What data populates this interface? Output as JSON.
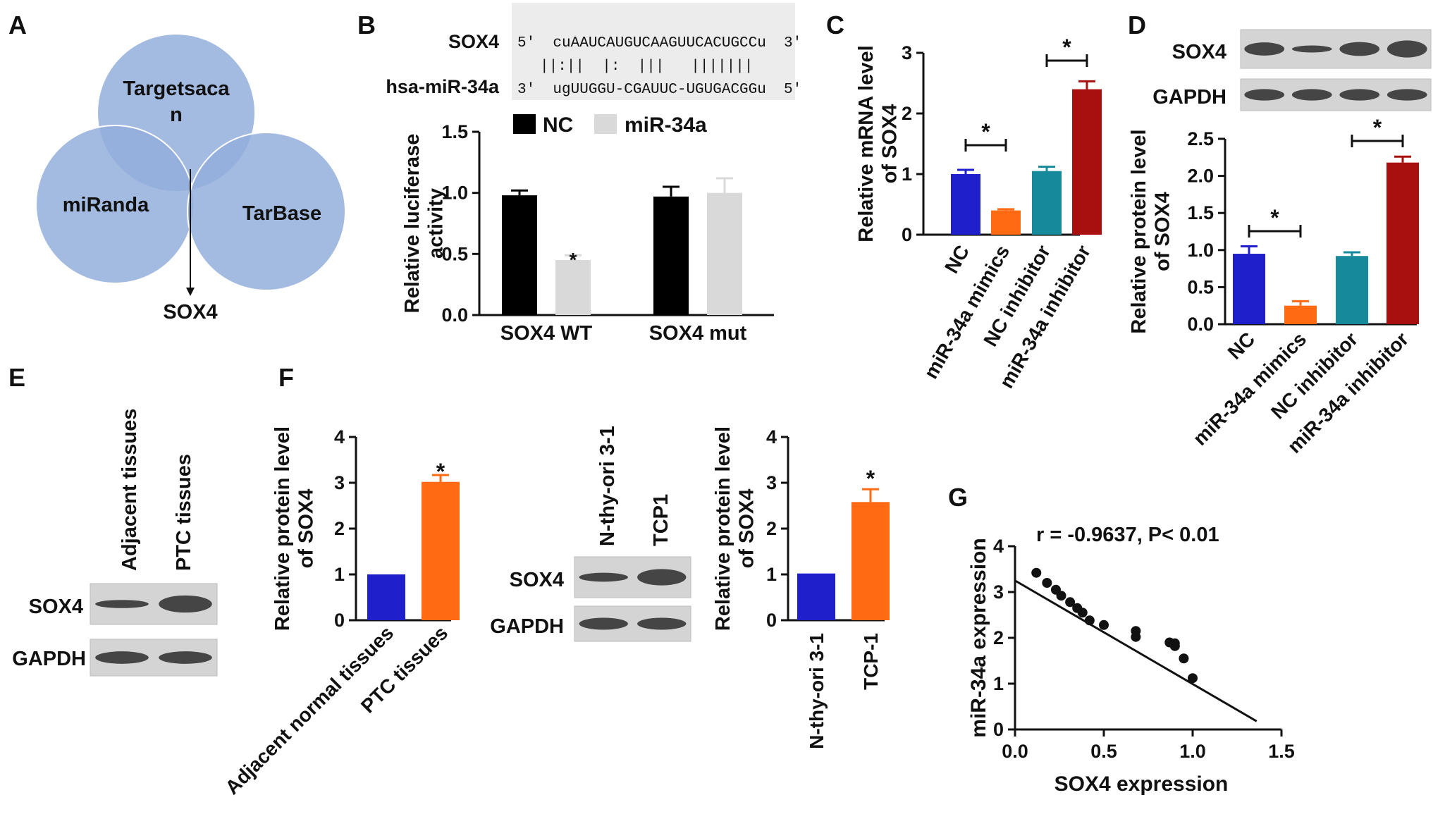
{
  "panels": {
    "A": {
      "letter": "A",
      "circles": [
        "Targetsacan",
        "miRanda",
        "TarBase"
      ],
      "circle_line1": "Targetsaca",
      "circle_line2": "n",
      "result": "SOX4",
      "color": "#93aedc"
    },
    "B": {
      "letter": "B",
      "seq_name_top": "SOX4",
      "seq_name_bottom": "hsa-miR-34a",
      "seq_top": "5'  cuAAUCAUGUCAAGUUCACUGCCu  3'",
      "seq_pairs": "||:||  |:  |||   |||||||",
      "seq_bottom": "3'  ugUUGGU-CGAUUC-UGUGACGGu  5'",
      "seq_top_color": "#2222cc",
      "seq_pair_color": "#cc2222",
      "seq_bottom_color": "#e07000",
      "chart_data": {
        "type": "bar",
        "categories": [
          "SOX4 WT",
          "SOX4 mut"
        ],
        "series": [
          {
            "name": "NC",
            "values": [
              0.98,
              0.97
            ],
            "errors": [
              0.04,
              0.08
            ],
            "color": "#000000"
          },
          {
            "name": "miR-34a",
            "values": [
              0.45,
              1.0
            ],
            "errors": [
              0.04,
              0.12
            ],
            "color": "#d9d9d9"
          }
        ],
        "ylabel_line1": "Relative luciferase",
        "ylabel_line2": "activity",
        "ylim": [
          0,
          1.5
        ],
        "yticks": [
          "0.0",
          "0.5",
          "1.0",
          "1.5"
        ],
        "legend": "top",
        "annotation": "*"
      }
    },
    "C": {
      "letter": "C",
      "chart_data": {
        "type": "bar",
        "categories": [
          "NC",
          "miR-34a mimics",
          "NC inhibitor",
          "miR-34a inhibitor"
        ],
        "values": [
          1.0,
          0.4,
          1.05,
          2.4
        ],
        "errors": [
          0.07,
          0.02,
          0.07,
          0.13
        ],
        "colors": [
          "#1f1fcc",
          "#ff6a13",
          "#168a9a",
          "#a81010"
        ],
        "ylabel_line1": "Relative mRNA level",
        "ylabel_line2": "of SOX4",
        "ylim": [
          0,
          3
        ],
        "yticks": [
          "0",
          "1",
          "2",
          "3"
        ],
        "annotation": "*"
      }
    },
    "D": {
      "letter": "D",
      "blot_labels": [
        "SOX4",
        "GAPDH"
      ],
      "chart_data": {
        "type": "bar",
        "categories": [
          "NC",
          "miR-34a mimics",
          "NC inhibitor",
          "miR-34a inhibitor"
        ],
        "values": [
          0.95,
          0.25,
          0.92,
          2.18
        ],
        "errors": [
          0.1,
          0.06,
          0.05,
          0.08
        ],
        "colors": [
          "#1f1fcc",
          "#ff6a13",
          "#168a9a",
          "#a81010"
        ],
        "ylabel_line1": "Relative protein level",
        "ylabel_line2": "of SOX4",
        "ylim": [
          0,
          2.5
        ],
        "yticks": [
          "0.0",
          "0.5",
          "1.0",
          "1.5",
          "2.0",
          "2.5"
        ],
        "annotation": "*"
      }
    },
    "E": {
      "letter": "E",
      "lanes": [
        "Adjacent tissues",
        "PTC tissues"
      ],
      "blot_labels": [
        "SOX4",
        "GAPDH"
      ]
    },
    "F": {
      "letter": "F",
      "chart1": {
        "type": "bar",
        "categories": [
          "Adjacent normal tissues",
          "PTC tissues"
        ],
        "values": [
          1.0,
          3.02
        ],
        "errors": [
          0,
          0.15
        ],
        "colors": [
          "#1f1fcc",
          "#ff6a13"
        ],
        "ylabel_line1": "Relative protein level",
        "ylabel_line2": "of SOX4",
        "ylim": [
          0,
          4
        ],
        "yticks": [
          "0",
          "1",
          "2",
          "3",
          "4"
        ],
        "annotation": "*"
      },
      "lanes": [
        "N-thy-ori 3-1",
        "TCP1"
      ],
      "blot_labels": [
        "SOX4",
        "GAPDH"
      ],
      "chart2": {
        "type": "bar",
        "categories": [
          "N-thy-ori 3-1",
          "TCP-1"
        ],
        "values": [
          1.02,
          2.58
        ],
        "errors": [
          0,
          0.28
        ],
        "colors": [
          "#1f1fcc",
          "#ff6a13"
        ],
        "ylabel_line1": "Relative protein level",
        "ylabel_line2": "of SOX4",
        "ylim": [
          0,
          4
        ],
        "yticks": [
          "0",
          "1",
          "2",
          "3",
          "4"
        ],
        "annotation": "*"
      }
    },
    "G": {
      "letter": "G",
      "chart_data": {
        "type": "scatter",
        "annotation": "r = -0.9637, P< 0.01",
        "xlabel": "SOX4 expression",
        "ylabel": "miR-34a expression",
        "xlim": [
          0,
          1.5
        ],
        "ylim": [
          0,
          4
        ],
        "xticks": [
          "0.0",
          "0.5",
          "1.0",
          "1.5"
        ],
        "yticks": [
          "0",
          "1",
          "2",
          "3",
          "4"
        ],
        "points": [
          [
            0.12,
            3.42
          ],
          [
            0.18,
            3.2
          ],
          [
            0.23,
            3.05
          ],
          [
            0.26,
            2.92
          ],
          [
            0.31,
            2.78
          ],
          [
            0.35,
            2.65
          ],
          [
            0.38,
            2.55
          ],
          [
            0.42,
            2.38
          ],
          [
            0.5,
            2.28
          ],
          [
            0.68,
            2.15
          ],
          [
            0.68,
            2.02
          ],
          [
            0.87,
            1.9
          ],
          [
            0.9,
            1.88
          ],
          [
            0.9,
            1.82
          ],
          [
            0.95,
            1.55
          ],
          [
            1.0,
            1.12
          ]
        ],
        "fit": [
          [
            0.0,
            3.25
          ],
          [
            1.36,
            0.18
          ]
        ]
      }
    }
  }
}
